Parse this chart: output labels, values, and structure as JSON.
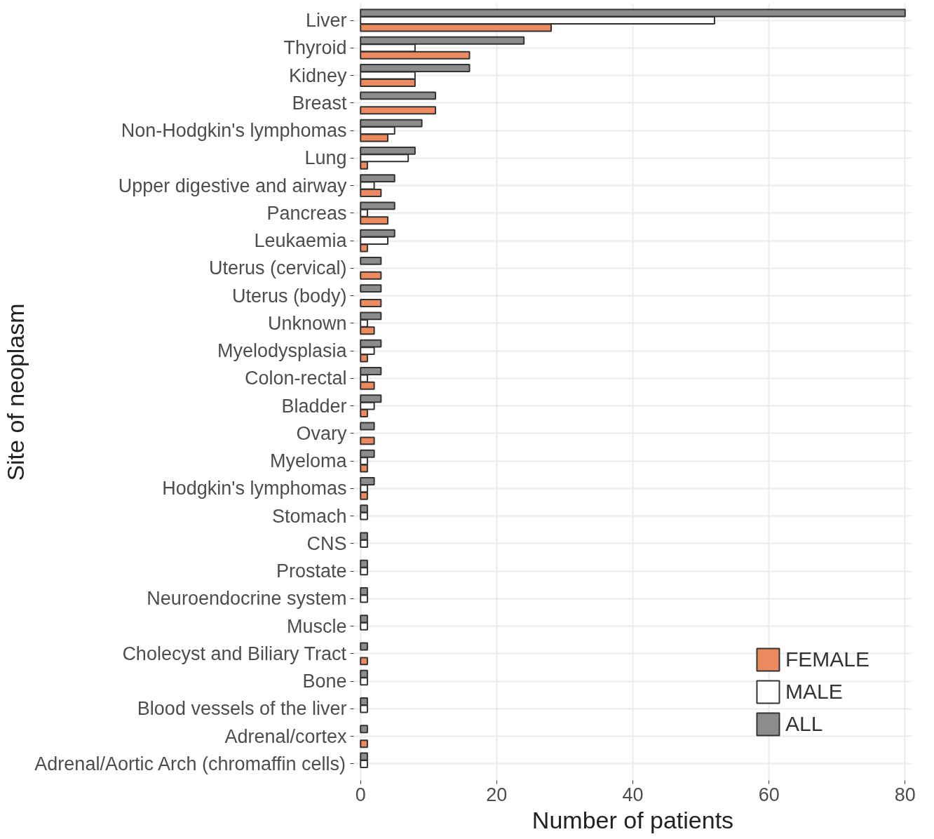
{
  "chart_data": {
    "type": "bar",
    "orientation": "horizontal",
    "xlabel": "Number of patients",
    "ylabel": "Site of neoplasm",
    "categories": [
      "Liver",
      "Thyroid",
      "Kidney",
      "Breast",
      "Non-Hodgkin's lymphomas",
      "Lung",
      "Upper digestive and airway",
      "Pancreas",
      "Leukaemia",
      "Uterus (cervical)",
      "Uterus (body)",
      "Unknown",
      "Myelodysplasia",
      "Colon-rectal",
      "Bladder",
      "Ovary",
      "Myeloma",
      "Hodgkin's lymphomas",
      "Stomach",
      "CNS",
      "Prostate",
      "Neuroendocrine system",
      "Muscle",
      "Cholecyst and Biliary Tract",
      "Bone",
      "Blood vessels of the liver",
      "Adrenal/cortex",
      "Adrenal/Aortic Arch (chromaffin cells)"
    ],
    "series": [
      {
        "name": "FEMALE",
        "color": "#ee8a5f",
        "values": [
          28,
          16,
          8,
          11,
          4,
          1,
          3,
          4,
          1,
          3,
          3,
          2,
          1,
          2,
          1,
          2,
          1,
          1,
          0,
          0,
          0,
          0,
          0,
          1,
          0,
          0,
          1,
          0
        ]
      },
      {
        "name": "MALE",
        "color": "#ffffff",
        "values": [
          52,
          8,
          8,
          0,
          5,
          7,
          2,
          1,
          4,
          0,
          0,
          1,
          2,
          1,
          2,
          0,
          1,
          1,
          1,
          1,
          1,
          1,
          1,
          0,
          1,
          1,
          0,
          1
        ]
      },
      {
        "name": "ALL",
        "color": "#8c8c8c",
        "values": [
          80,
          24,
          16,
          11,
          9,
          8,
          5,
          5,
          5,
          3,
          3,
          3,
          3,
          3,
          3,
          2,
          2,
          2,
          1,
          1,
          1,
          1,
          1,
          1,
          1,
          1,
          1,
          1
        ]
      }
    ],
    "xlim": [
      -1,
      81
    ],
    "xticks": [
      0,
      20,
      40,
      60,
      80
    ],
    "grid": true,
    "legend": "bottom right"
  }
}
